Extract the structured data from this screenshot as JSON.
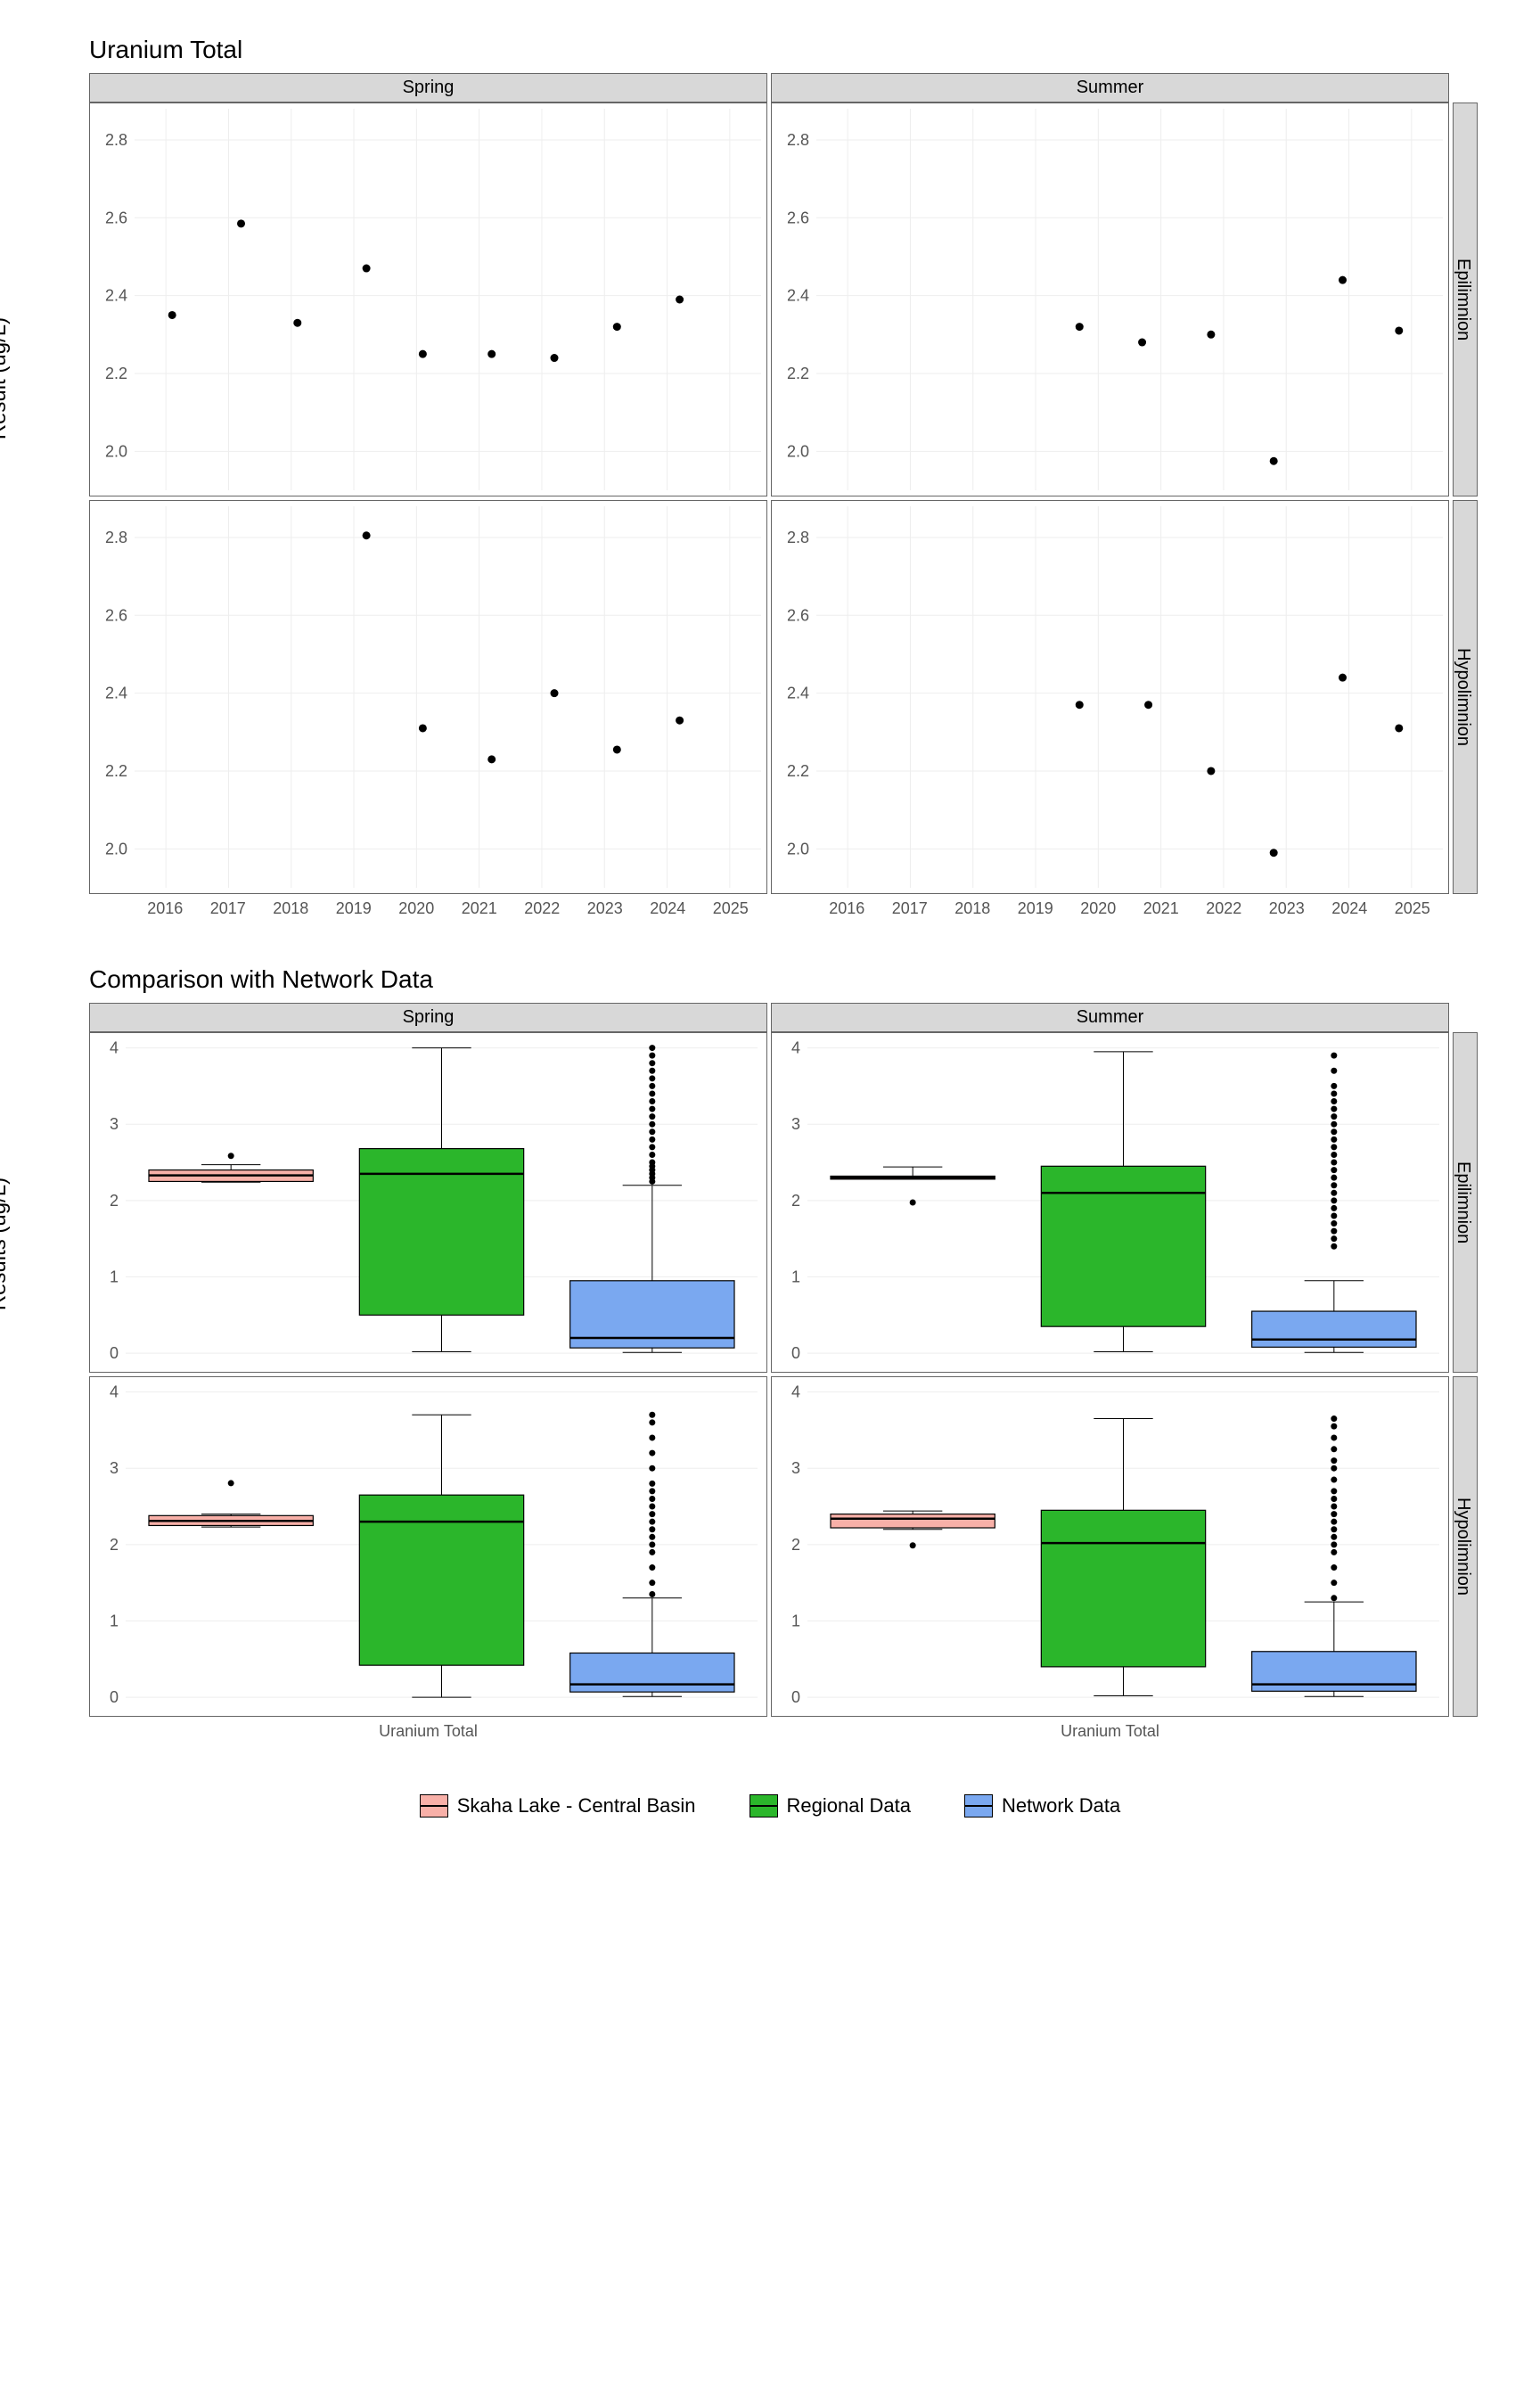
{
  "chart1": {
    "title": "Uranium Total",
    "ylabel": "Result (ug/L)",
    "facet_cols": [
      "Spring",
      "Summer"
    ],
    "facet_rows": [
      "Epilimnion",
      "Hypolimnion"
    ],
    "x_ticks": [
      2016,
      2017,
      2018,
      2019,
      2020,
      2021,
      2022,
      2023,
      2024,
      2025
    ],
    "y_ticks": [
      2.0,
      2.2,
      2.4,
      2.6,
      2.8
    ],
    "xlim": [
      2015.5,
      2025.5
    ],
    "ylim": [
      1.9,
      2.88
    ],
    "panels": {
      "Spring_Epilimnion": [
        [
          2016.1,
          2.35
        ],
        [
          2017.2,
          2.585
        ],
        [
          2018.1,
          2.33
        ],
        [
          2019.2,
          2.47
        ],
        [
          2020.1,
          2.25
        ],
        [
          2021.2,
          2.25
        ],
        [
          2022.2,
          2.24
        ],
        [
          2023.2,
          2.32
        ],
        [
          2024.2,
          2.39
        ]
      ],
      "Summer_Epilimnion": [
        [
          2019.7,
          2.32
        ],
        [
          2020.7,
          2.28
        ],
        [
          2021.8,
          2.3
        ],
        [
          2022.8,
          1.975
        ],
        [
          2023.9,
          2.44
        ],
        [
          2024.8,
          2.31
        ]
      ],
      "Spring_Hypolimnion": [
        [
          2019.2,
          2.805
        ],
        [
          2020.1,
          2.31
        ],
        [
          2021.2,
          2.23
        ],
        [
          2022.2,
          2.4
        ],
        [
          2023.2,
          2.255
        ],
        [
          2024.2,
          2.33
        ]
      ],
      "Summer_Hypolimnion": [
        [
          2019.7,
          2.37
        ],
        [
          2020.8,
          2.37
        ],
        [
          2021.8,
          2.2
        ],
        [
          2022.8,
          1.99
        ],
        [
          2023.9,
          2.44
        ],
        [
          2024.8,
          2.31
        ]
      ]
    },
    "grid_color": "#eeeeee",
    "point_color": "#000000",
    "strip_bg": "#d8d8d8"
  },
  "chart2": {
    "title": "Comparison with Network Data",
    "ylabel": "Results (ug/L)",
    "facet_cols": [
      "Spring",
      "Summer"
    ],
    "facet_rows": [
      "Epilimnion",
      "Hypolimnion"
    ],
    "x_category": "Uranium Total",
    "y_ticks": [
      0,
      1,
      2,
      3,
      4
    ],
    "ylim": [
      -0.15,
      4.1
    ],
    "series": [
      {
        "name": "Skaha Lake - Central Basin",
        "color": "#f8b0a8"
      },
      {
        "name": "Regional Data",
        "color": "#2bb62b"
      },
      {
        "name": "Network Data",
        "color": "#7aa8f0"
      }
    ],
    "panels": {
      "Spring_Epilimnion": {
        "boxes": [
          {
            "q1": 2.25,
            "med": 2.33,
            "q3": 2.4,
            "lw": 2.24,
            "uw": 2.47,
            "outliers": [
              2.585
            ]
          },
          {
            "q1": 0.5,
            "med": 2.35,
            "q3": 2.68,
            "lw": 0.02,
            "uw": 4.0,
            "outliers": []
          },
          {
            "q1": 0.07,
            "med": 0.2,
            "q3": 0.95,
            "lw": 0.01,
            "uw": 2.2,
            "outliers": [
              2.25,
              2.3,
              2.35,
              2.4,
              2.45,
              2.5,
              2.6,
              2.7,
              2.8,
              2.9,
              3.0,
              3.1,
              3.2,
              3.3,
              3.4,
              3.5,
              3.6,
              3.7,
              3.8,
              3.9,
              4.0
            ]
          }
        ]
      },
      "Summer_Epilimnion": {
        "boxes": [
          {
            "q1": 2.28,
            "med": 2.3,
            "q3": 2.32,
            "lw": 2.28,
            "uw": 2.44,
            "outliers": [
              1.975
            ]
          },
          {
            "q1": 0.35,
            "med": 2.1,
            "q3": 2.45,
            "lw": 0.02,
            "uw": 3.95,
            "outliers": []
          },
          {
            "q1": 0.08,
            "med": 0.18,
            "q3": 0.55,
            "lw": 0.01,
            "uw": 0.95,
            "outliers": [
              1.4,
              1.5,
              1.6,
              1.7,
              1.8,
              1.9,
              2.0,
              2.1,
              2.2,
              2.3,
              2.4,
              2.5,
              2.6,
              2.7,
              2.8,
              2.9,
              3.0,
              3.1,
              3.2,
              3.3,
              3.4,
              3.5,
              3.7,
              3.9
            ]
          }
        ]
      },
      "Spring_Hypolimnion": {
        "boxes": [
          {
            "q1": 2.25,
            "med": 2.31,
            "q3": 2.38,
            "lw": 2.23,
            "uw": 2.4,
            "outliers": [
              2.805
            ]
          },
          {
            "q1": 0.42,
            "med": 2.3,
            "q3": 2.65,
            "lw": 0.0,
            "uw": 3.7,
            "outliers": []
          },
          {
            "q1": 0.07,
            "med": 0.17,
            "q3": 0.58,
            "lw": 0.01,
            "uw": 1.3,
            "outliers": [
              1.35,
              1.5,
              1.7,
              1.9,
              2.0,
              2.1,
              2.2,
              2.3,
              2.4,
              2.5,
              2.6,
              2.7,
              2.8,
              3.0,
              3.2,
              3.4,
              3.6,
              3.7
            ]
          }
        ]
      },
      "Summer_Hypolimnion": {
        "boxes": [
          {
            "q1": 2.22,
            "med": 2.34,
            "q3": 2.4,
            "lw": 2.2,
            "uw": 2.44,
            "outliers": [
              1.99
            ]
          },
          {
            "q1": 0.4,
            "med": 2.02,
            "q3": 2.45,
            "lw": 0.02,
            "uw": 3.65,
            "outliers": []
          },
          {
            "q1": 0.08,
            "med": 0.17,
            "q3": 0.6,
            "lw": 0.01,
            "uw": 1.25,
            "outliers": [
              1.3,
              1.5,
              1.7,
              1.9,
              2.0,
              2.1,
              2.2,
              2.3,
              2.4,
              2.5,
              2.6,
              2.7,
              2.85,
              3.0,
              3.1,
              3.25,
              3.4,
              3.55,
              3.65
            ]
          }
        ]
      }
    }
  },
  "legend_title": "",
  "legend_items": [
    {
      "label": "Skaha Lake - Central Basin",
      "color": "#f8b0a8"
    },
    {
      "label": "Regional Data",
      "color": "#2bb62b"
    },
    {
      "label": "Network Data",
      "color": "#7aa8f0"
    }
  ]
}
